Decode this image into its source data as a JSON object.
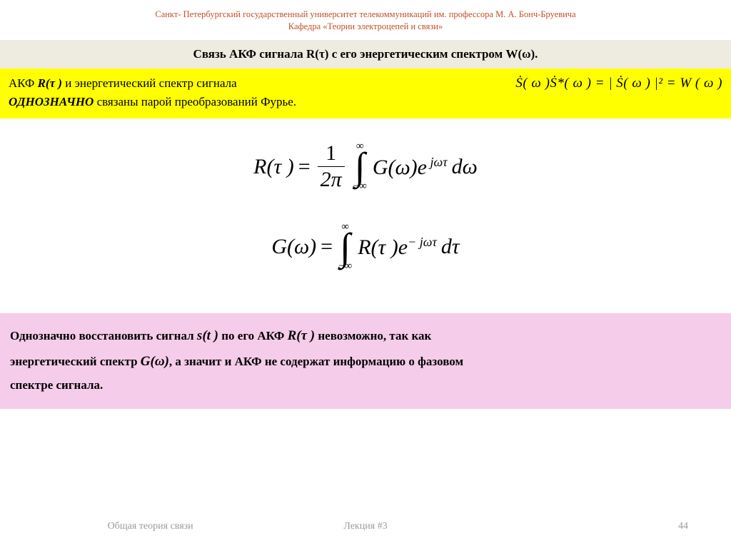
{
  "colors": {
    "header_text": "#c05028",
    "title_bar_bg": "#eeece1",
    "title_text": "#000000",
    "yellow_bg": "#ffff00",
    "pink_bg": "#f5cce9",
    "body_text": "#000000",
    "footer_text": "#9a9a9a"
  },
  "header": {
    "line1": "Санкт- Петербургский государственный университет телекоммуникаций им. профессора М. А. Бонч-Бруевича",
    "line2": "Кафедра «Теории электроцепей и связи»"
  },
  "title": "Связь АКФ сигнала  R(τ)  с его энергетическим спектром W(ω).",
  "yellow": {
    "prefix1": "АКФ ",
    "rtau": "R(τ )",
    "mid1": " и энергетический спектр сигнала",
    "em2": "ОДНОЗНАЧНО",
    "tail": " связаны парой преобразований Фурье.",
    "inline_eq": "Ṡ( ω )Ṡ*( ω ) = | Ṡ( ω ) |²  = W ( ω )"
  },
  "eq1": {
    "lhs": "R(τ )",
    "eq": "=",
    "num": "1",
    "den": "2π",
    "top": "∞",
    "sym": "∫",
    "bot": "−∞",
    "integrand_a": "G(ω)e",
    "exp": " jωτ",
    "dw": "dω"
  },
  "eq2": {
    "lhs": "G(ω)",
    "eq": "=",
    "top": "∞",
    "sym": "∫",
    "bot": "−∞",
    "integrand_a": "R(τ )e",
    "exp": "− jωτ",
    "dt": "dτ"
  },
  "pink": {
    "p1a": "Однозначно восстановить сигнал ",
    "st": "s(t )",
    "p1b": " по его АКФ ",
    "rtau": "R(τ )",
    "p1c": " невозможно, так как",
    "p2a": "энергетический спектр ",
    "gw": "G(ω)",
    "p2b": ", а значит и АКФ не содержат информацию о фазовом",
    "p3": "спектре сигнала."
  },
  "footer": {
    "course": "Общая теория связи",
    "lecture": "Лекция #3",
    "page": "44"
  }
}
